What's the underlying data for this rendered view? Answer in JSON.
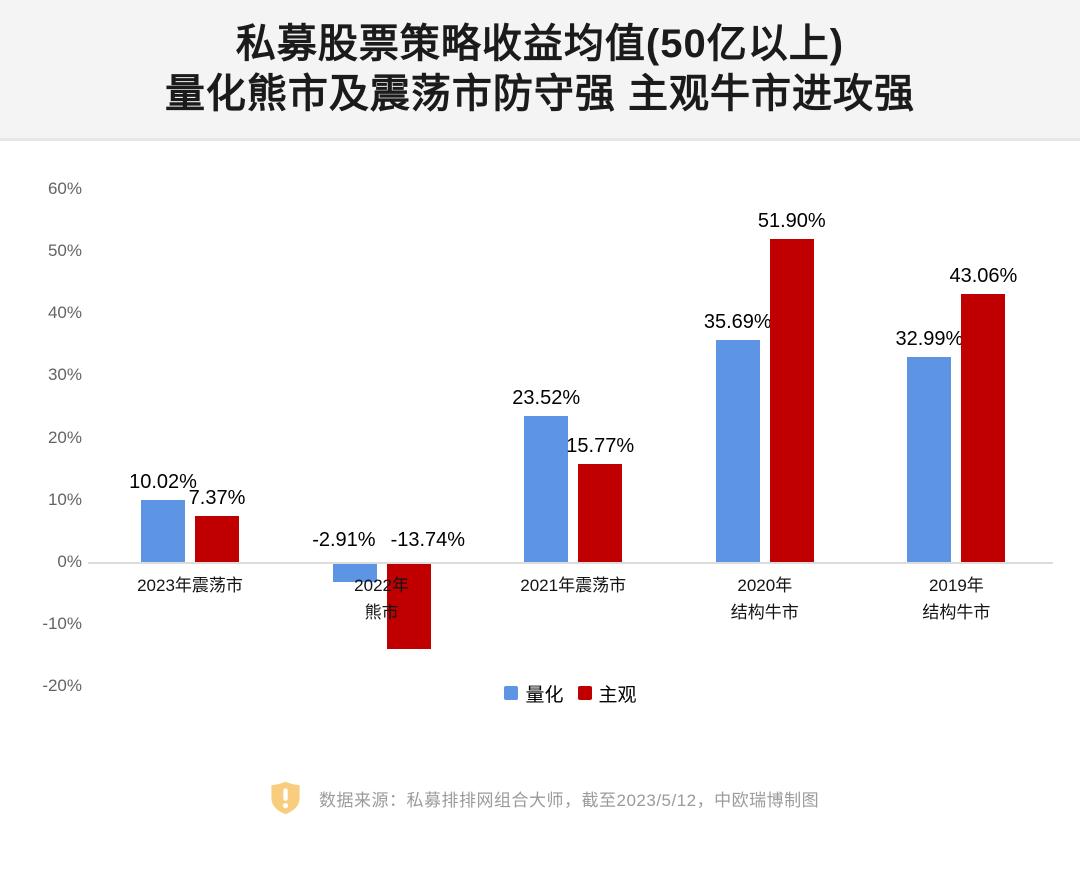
{
  "title": {
    "line1": "私募股票策略收益均值(50亿以上)",
    "line2": "量化熊市及震荡市防守强 主观牛市进攻强"
  },
  "chart_data": {
    "type": "bar",
    "title": "私募股票策略收益均值(50亿以上) 量化熊市及震荡市防守强 主观牛市进攻强",
    "categories": [
      "2023年震荡市",
      "2022年熊市",
      "2021年震荡市",
      "2020年结构牛市",
      "2019年结构牛市"
    ],
    "category_lines": [
      [
        "2023年震荡市"
      ],
      [
        "2022年",
        "熊市"
      ],
      [
        "2021年震荡市"
      ],
      [
        "2020年",
        "结构牛市"
      ],
      [
        "2019年",
        "结构牛市"
      ]
    ],
    "series": [
      {
        "name": "量化",
        "color": "#5E94E4",
        "values": [
          10.02,
          -2.91,
          23.52,
          35.69,
          32.99
        ],
        "labels": [
          "10.02%",
          "-2.91%",
          "23.52%",
          "35.69%",
          "32.99%"
        ]
      },
      {
        "name": "主观",
        "color": "#C00000",
        "values": [
          7.37,
          -13.74,
          15.77,
          51.9,
          43.06
        ],
        "labels": [
          "7.37%",
          "-13.74%",
          "15.77%",
          "51.90%",
          "43.06%"
        ]
      }
    ],
    "xlabel": "",
    "ylabel": "",
    "ylim": [
      -20,
      60
    ],
    "grid": false,
    "legend_position": "bottom",
    "y_ticks": [
      {
        "label": "60%",
        "value": 60
      },
      {
        "label": "50%",
        "value": 50
      },
      {
        "label": "40%",
        "value": 40
      },
      {
        "label": "30%",
        "value": 30
      },
      {
        "label": "20%",
        "value": 20
      },
      {
        "label": "10%",
        "value": 10
      },
      {
        "label": "0%",
        "value": 0
      },
      {
        "label": "-10%",
        "value": -10
      },
      {
        "label": "-20%",
        "value": -20
      }
    ]
  },
  "legend": {
    "items": [
      {
        "label": "量化",
        "color": "#5E94E4"
      },
      {
        "label": "主观",
        "color": "#C00000"
      }
    ]
  },
  "footer": {
    "icon": "warning-shield-icon",
    "text": "数据来源：私募排排网组合大师，截至2023/5/12，中欧瑞博制图"
  },
  "colors": {
    "header_bg": "#f4f4f5",
    "quant_blue": "#5E94E4",
    "subjective_red": "#C00000",
    "axis_line": "#dcdcdc",
    "tick_text": "#636363",
    "footer_text": "#9b9b9b",
    "footer_icon": "#F8CD7D"
  }
}
